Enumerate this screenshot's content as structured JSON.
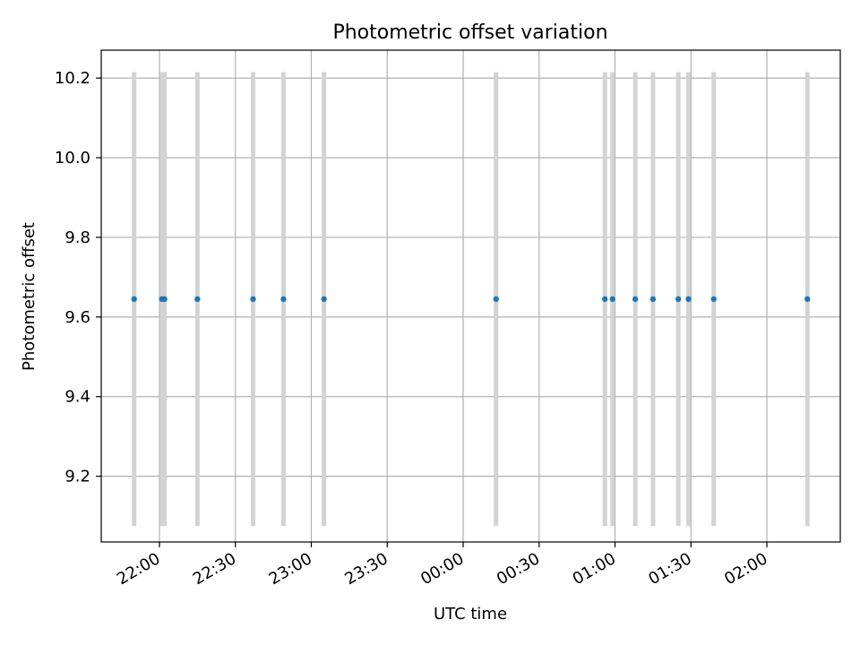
{
  "chart_data": {
    "type": "scatter",
    "title": "Photometric offset variation",
    "xlabel": "UTC time",
    "ylabel": "Photometric offset",
    "grid": true,
    "x_axis_type": "time",
    "x_start": "21:37",
    "x_end": "02:29",
    "xlim": [
      "2024-01-01T21:37",
      "2024-01-02T02:29"
    ],
    "ylim": [
      9.035,
      10.27
    ],
    "x_ticks": [
      {
        "time": "2024-01-01T22:00",
        "label": "22:00"
      },
      {
        "time": "2024-01-01T22:30",
        "label": "22:30"
      },
      {
        "time": "2024-01-01T23:00",
        "label": "23:00"
      },
      {
        "time": "2024-01-01T23:30",
        "label": "23:30"
      },
      {
        "time": "2024-01-02T00:00",
        "label": "00:00"
      },
      {
        "time": "2024-01-02T00:30",
        "label": "00:30"
      },
      {
        "time": "2024-01-02T01:00",
        "label": "01:00"
      },
      {
        "time": "2024-01-02T01:30",
        "label": "01:30"
      },
      {
        "time": "2024-01-02T02:00",
        "label": "02:00"
      }
    ],
    "y_ticks": [
      {
        "value": 9.2,
        "label": "9.2"
      },
      {
        "value": 9.4,
        "label": "9.4"
      },
      {
        "value": 9.6,
        "label": "9.6"
      },
      {
        "value": 9.8,
        "label": "9.8"
      },
      {
        "value": 10.0,
        "label": "10.0"
      },
      {
        "value": 10.2,
        "label": "10.2"
      }
    ],
    "error_bars": {
      "lower": 9.075,
      "upper": 10.215,
      "color": "#d3d3d3"
    },
    "marker_color": "#1f77b4",
    "points": [
      {
        "time": "2024-01-01T21:50",
        "y": 9.645
      },
      {
        "time": "2024-01-01T22:01",
        "y": 9.645
      },
      {
        "time": "2024-01-01T22:02",
        "y": 9.645
      },
      {
        "time": "2024-01-01T22:15",
        "y": 9.645
      },
      {
        "time": "2024-01-01T22:37",
        "y": 9.645
      },
      {
        "time": "2024-01-01T22:49",
        "y": 9.645
      },
      {
        "time": "2024-01-01T23:05",
        "y": 9.645
      },
      {
        "time": "2024-01-02T00:13",
        "y": 9.645
      },
      {
        "time": "2024-01-02T00:56",
        "y": 9.645
      },
      {
        "time": "2024-01-02T00:59",
        "y": 9.645
      },
      {
        "time": "2024-01-02T01:08",
        "y": 9.645
      },
      {
        "time": "2024-01-02T01:15",
        "y": 9.645
      },
      {
        "time": "2024-01-02T01:25",
        "y": 9.645
      },
      {
        "time": "2024-01-02T01:29",
        "y": 9.645
      },
      {
        "time": "2024-01-02T01:39",
        "y": 9.645
      },
      {
        "time": "2024-01-02T02:16",
        "y": 9.645
      }
    ]
  }
}
